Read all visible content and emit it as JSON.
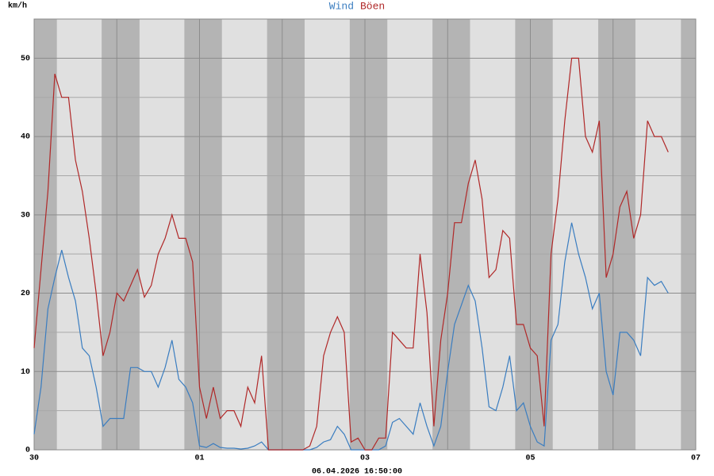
{
  "chart_data": {
    "type": "line",
    "y_label": "km/h",
    "footer": "06.04.2026 16:50:00",
    "x": [
      0,
      2,
      4,
      6,
      8,
      10,
      12,
      14,
      16,
      18,
      20,
      22,
      24,
      26,
      28,
      30,
      32,
      34,
      36,
      38,
      40,
      42,
      44,
      46,
      48,
      50,
      52,
      54,
      56,
      58,
      60,
      62,
      64,
      66,
      68,
      70,
      72,
      74,
      76,
      78,
      80,
      82,
      84,
      86,
      88,
      90,
      92,
      94,
      96,
      98,
      100,
      102,
      104,
      106,
      108,
      110,
      112,
      114,
      116,
      118,
      120,
      122,
      124,
      126,
      128,
      130,
      132,
      134,
      136,
      138,
      140,
      142,
      144,
      146,
      148,
      150,
      152,
      154,
      156,
      158,
      160,
      162,
      164,
      166,
      168,
      170,
      172,
      174,
      176,
      178,
      180,
      182,
      184
    ],
    "series": [
      {
        "name": "Wind",
        "color": "#3a7dc0",
        "values": [
          2,
          8,
          18,
          22,
          25.5,
          22,
          19,
          13,
          12,
          8,
          3,
          4,
          4,
          4,
          10.5,
          10.5,
          10,
          10,
          8,
          10.5,
          14,
          9,
          8,
          6,
          0.5,
          0.3,
          0.8,
          0.3,
          0.2,
          0.2,
          0.1,
          0.2,
          0.5,
          1,
          0,
          0,
          0,
          0,
          0,
          0,
          0,
          0.3,
          1,
          1.3,
          3,
          2,
          0,
          0,
          0,
          0,
          0,
          0.5,
          3.5,
          4,
          3,
          2,
          6,
          3,
          0.5,
          3,
          10,
          16,
          18.5,
          21,
          19,
          13,
          5.5,
          5,
          8,
          12,
          5,
          6,
          3,
          1,
          0.5,
          14,
          16,
          24,
          29,
          25,
          22,
          18,
          20,
          10,
          7,
          15,
          15,
          14,
          12,
          22,
          21,
          21.5,
          20
        ]
      },
      {
        "name": "Böen",
        "color": "#b02828",
        "values": [
          13,
          23,
          33,
          48,
          45,
          45,
          37,
          33,
          27,
          20,
          12,
          15,
          20,
          19,
          21,
          23,
          19.5,
          21,
          25,
          27,
          30,
          27,
          27,
          24,
          8,
          4,
          8,
          4,
          5,
          5,
          3,
          8,
          6,
          12,
          0,
          0,
          0,
          0,
          0,
          0,
          0.5,
          3,
          12,
          15,
          17,
          15,
          1,
          1.5,
          0,
          0,
          1.5,
          1.5,
          15,
          14,
          13,
          13,
          25,
          17.5,
          3,
          14,
          20,
          29,
          29,
          34,
          37,
          32,
          22,
          23,
          28,
          27,
          16,
          16,
          13,
          12,
          3,
          25,
          32,
          42,
          50,
          50,
          40,
          38,
          42,
          22,
          25,
          31,
          33,
          27,
          30,
          42,
          40,
          40,
          38
        ]
      }
    ],
    "xlim": [
      0,
      192
    ],
    "xticks": [
      {
        "value": 0,
        "label": "30"
      },
      {
        "value": 48,
        "label": "01"
      },
      {
        "value": 96,
        "label": "03"
      },
      {
        "value": 144,
        "label": "05"
      },
      {
        "value": 192,
        "label": "07"
      }
    ],
    "xminor": [
      24,
      72,
      120,
      168
    ],
    "night": [
      [
        0,
        6.6
      ],
      [
        19.6,
        30.6
      ],
      [
        43.6,
        54.5
      ],
      [
        67.6,
        78.5
      ],
      [
        91.6,
        102.5
      ],
      [
        115.6,
        126.5
      ],
      [
        139.6,
        150.5
      ],
      [
        163.7,
        174.5
      ],
      [
        187.7,
        192
      ]
    ],
    "ylim": [
      0,
      55
    ],
    "yticks": [
      0,
      10,
      20,
      30,
      40,
      50
    ],
    "yminor": [
      5,
      15,
      25,
      35,
      45
    ],
    "grid": true
  }
}
